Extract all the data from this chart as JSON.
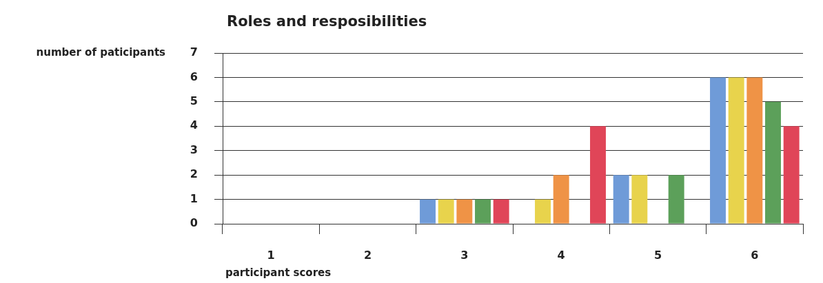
{
  "chart_data": {
    "type": "bar",
    "title": "Roles and resposibilities",
    "xlabel": "participant scores",
    "ylabel": "number of paticipants",
    "categories": [
      "1",
      "2",
      "3",
      "4",
      "5",
      "6"
    ],
    "series": [
      {
        "color": "#6f9bd8",
        "values": [
          0,
          0,
          1,
          0,
          2,
          6
        ]
      },
      {
        "color": "#e8d34c",
        "values": [
          0,
          0,
          1,
          1,
          2,
          6
        ]
      },
      {
        "color": "#ef9346",
        "values": [
          0,
          0,
          1,
          2,
          0,
          6
        ]
      },
      {
        "color": "#5ca05a",
        "values": [
          0,
          0,
          1,
          0,
          2,
          5
        ]
      },
      {
        "color": "#e04558",
        "values": [
          0,
          0,
          1,
          4,
          0,
          4
        ]
      }
    ],
    "ylim": [
      0,
      7
    ],
    "yticks": [
      0,
      1,
      2,
      3,
      4,
      5,
      6,
      7
    ],
    "grid": "y",
    "legend": false
  }
}
